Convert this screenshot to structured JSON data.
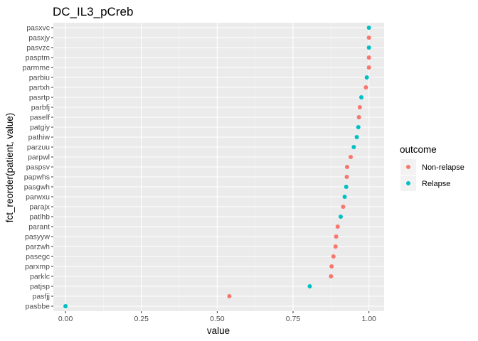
{
  "chart_data": {
    "type": "scatter",
    "title": "DC_IL3_pCreb",
    "xlabel": "value",
    "ylabel": "fct_reorder(patient, value)",
    "xlim": [
      -0.04,
      1.05
    ],
    "xticks": [
      0.0,
      0.25,
      0.5,
      0.75,
      1.0
    ],
    "xtick_labels": [
      "0.00",
      "0.25",
      "0.50",
      "0.75",
      "1.00"
    ],
    "grid": true,
    "legend": {
      "title": "outcome",
      "position": "right",
      "entries": [
        {
          "label": "Non-relapse",
          "color": "#F8766D"
        },
        {
          "label": "Relapse",
          "color": "#00BFC4"
        }
      ]
    },
    "colors": {
      "Non-relapse": "#F8766D",
      "Relapse": "#00BFC4"
    },
    "points": [
      {
        "patient": "pasbbe",
        "value": 0.0,
        "outcome": "Relapse"
      },
      {
        "patient": "pasfjj",
        "value": 0.54,
        "outcome": "Non-relapse"
      },
      {
        "patient": "patjsp",
        "value": 0.805,
        "outcome": "Relapse"
      },
      {
        "patient": "parklc",
        "value": 0.875,
        "outcome": "Non-relapse"
      },
      {
        "patient": "parxmp",
        "value": 0.877,
        "outcome": "Non-relapse"
      },
      {
        "patient": "pasegc",
        "value": 0.883,
        "outcome": "Non-relapse"
      },
      {
        "patient": "parzwh",
        "value": 0.89,
        "outcome": "Non-relapse"
      },
      {
        "patient": "pasyyw",
        "value": 0.892,
        "outcome": "Non-relapse"
      },
      {
        "patient": "parant",
        "value": 0.897,
        "outcome": "Non-relapse"
      },
      {
        "patient": "patlhb",
        "value": 0.907,
        "outcome": "Relapse"
      },
      {
        "patient": "parajx",
        "value": 0.915,
        "outcome": "Non-relapse"
      },
      {
        "patient": "parwxu",
        "value": 0.92,
        "outcome": "Relapse"
      },
      {
        "patient": "pasgwh",
        "value": 0.925,
        "outcome": "Relapse"
      },
      {
        "patient": "papwhs",
        "value": 0.927,
        "outcome": "Non-relapse"
      },
      {
        "patient": "paspsv",
        "value": 0.928,
        "outcome": "Non-relapse"
      },
      {
        "patient": "parpwl",
        "value": 0.94,
        "outcome": "Non-relapse"
      },
      {
        "patient": "parzuu",
        "value": 0.95,
        "outcome": "Relapse"
      },
      {
        "patient": "pathiw",
        "value": 0.96,
        "outcome": "Relapse"
      },
      {
        "patient": "patgiy",
        "value": 0.965,
        "outcome": "Relapse"
      },
      {
        "patient": "paself",
        "value": 0.967,
        "outcome": "Non-relapse"
      },
      {
        "patient": "parbfj",
        "value": 0.97,
        "outcome": "Non-relapse"
      },
      {
        "patient": "pasrtp",
        "value": 0.975,
        "outcome": "Relapse"
      },
      {
        "patient": "partxh",
        "value": 0.99,
        "outcome": "Non-relapse"
      },
      {
        "patient": "parbiu",
        "value": 0.993,
        "outcome": "Relapse"
      },
      {
        "patient": "parmme",
        "value": 1.0,
        "outcome": "Non-relapse"
      },
      {
        "patient": "pasptm",
        "value": 1.0,
        "outcome": "Non-relapse"
      },
      {
        "patient": "pasvzc",
        "value": 1.0,
        "outcome": "Relapse"
      },
      {
        "patient": "pasxjy",
        "value": 1.0,
        "outcome": "Non-relapse"
      },
      {
        "patient": "pasxvc",
        "value": 1.0,
        "outcome": "Relapse"
      }
    ]
  }
}
